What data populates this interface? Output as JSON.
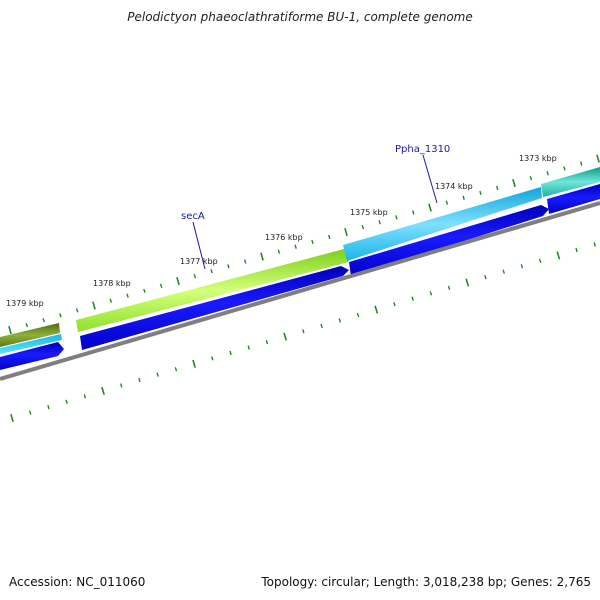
{
  "header": {
    "title": "Pelodictyon phaeoclathratiforme BU-1, complete genome"
  },
  "footer": {
    "accession": "Accession: NC_011060",
    "summary": "Topology: circular; Length: 3,018,238 bp; Genes: 2,765"
  },
  "ruler": {
    "labels": [
      "1373 kbp",
      "1374 kbp",
      "1375 kbp",
      "1376 kbp",
      "1377 kbp",
      "1378 kbp",
      "1379 kbp"
    ]
  },
  "genes": [
    {
      "name": "secA"
    },
    {
      "name": "Ppha_1310"
    }
  ],
  "colors": {
    "cog_olive": "#6b8a1f",
    "cog_lime": "#a8f03a",
    "cog_sky": "#2cc6f2",
    "cog_teal": "#23b8a8",
    "cds": "#0000e0",
    "backbone": "#7f7f7f",
    "ticks": "#1f8a1f",
    "gene_label": "#1a1aa6"
  }
}
